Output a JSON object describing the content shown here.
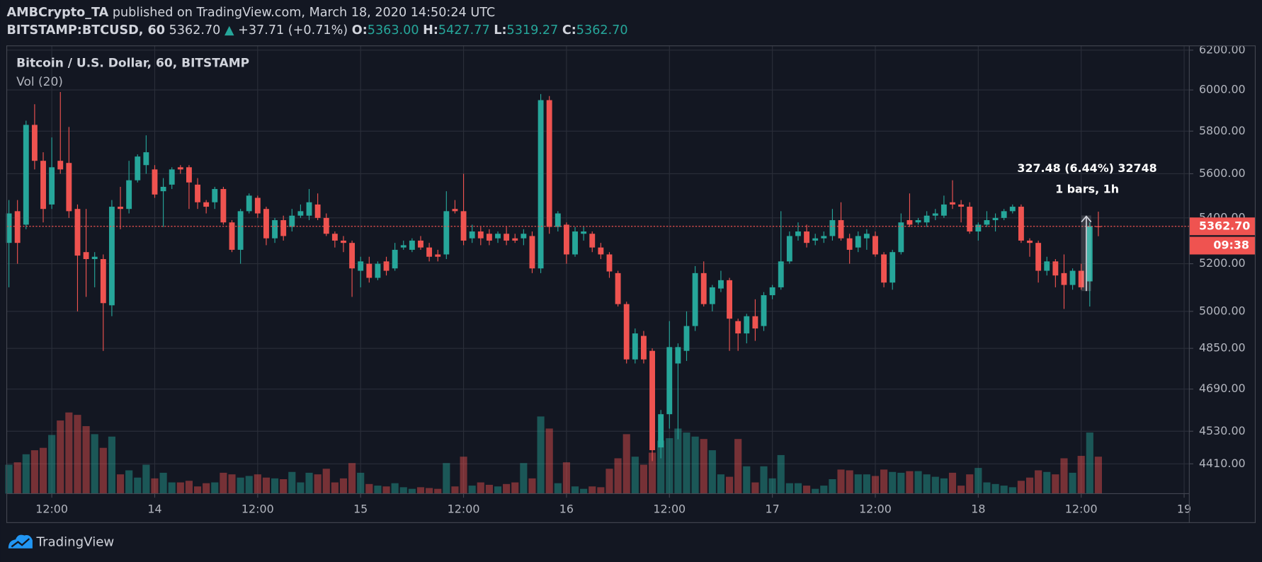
{
  "header": {
    "author": "AMBCrypto_TA",
    "published": "published on TradingView.com, March 18, 2020 14:50:24 UTC",
    "symbol": "BITSTAMP:BTCUSD, 60",
    "last": "5362.70",
    "change": "+37.71 (+0.71%)",
    "o_label": "O:",
    "o": "5363.00",
    "h_label": "H:",
    "h": "5427.77",
    "l_label": "L:",
    "l": "5319.27",
    "c_label": "C:",
    "c": "5362.70"
  },
  "chart_data": {
    "type": "candlestick",
    "title": "Bitcoin / U.S. Dollar, 60, BITSTAMP",
    "volume_title": "Vol (20)",
    "up_color": "#26a69a",
    "down_color": "#ef5350",
    "log_scale": true,
    "grid": true,
    "open": [
      5290,
      5430,
      5370,
      5830,
      5660,
      5460,
      5660,
      5650,
      5440,
      5250,
      5220,
      5220,
      5025,
      5450,
      5440,
      5570,
      5640,
      5620,
      5520,
      5550,
      5630,
      5630,
      5550,
      5470,
      5470,
      5530,
      5380,
      5260,
      5430,
      5490,
      5440,
      5310,
      5390,
      5360,
      5410,
      5410,
      5460,
      5400,
      5330,
      5300,
      5290,
      5170,
      5200,
      5140,
      5210,
      5180,
      5270,
      5260,
      5300,
      5270,
      5240,
      5240,
      5440,
      5430,
      5310,
      5340,
      5330,
      5310,
      5330,
      5310,
      5310,
      5320,
      5180,
      5950,
      5360,
      5370,
      5240,
      5330,
      5330,
      5270,
      5240,
      5160,
      5030,
      4806,
      4900,
      4840,
      4470,
      4594,
      4790,
      4840,
      4940,
      5160,
      5030,
      5095,
      5130,
      4960,
      4910,
      4980,
      4940,
      5067,
      5100,
      5210,
      5320,
      5340,
      5300,
      5310,
      5320,
      5390,
      5310,
      5270,
      5310,
      5320,
      5240,
      5120,
      5250,
      5390,
      5380,
      5380,
      5410,
      5410,
      5470,
      5460,
      5450,
      5340,
      5370,
      5390,
      5400,
      5430,
      5450,
      5300,
      5290,
      5170,
      5210,
      5160,
      5110,
      5170,
      5125,
      5363
    ],
    "high": [
      5480,
      5480,
      5850,
      5930,
      5700,
      5770,
      5990,
      5820,
      5460,
      5440,
      5250,
      5240,
      5480,
      5540,
      5660,
      5690,
      5780,
      5640,
      5580,
      5630,
      5640,
      5640,
      5580,
      5480,
      5540,
      5540,
      5390,
      5440,
      5510,
      5500,
      5450,
      5400,
      5410,
      5440,
      5460,
      5530,
      5510,
      5420,
      5340,
      5320,
      5300,
      5230,
      5230,
      5210,
      5230,
      5290,
      5300,
      5310,
      5320,
      5290,
      5260,
      5520,
      5480,
      5600,
      5370,
      5360,
      5350,
      5340,
      5360,
      5330,
      5350,
      5340,
      5980,
      5970,
      5430,
      5380,
      5360,
      5360,
      5340,
      5290,
      5250,
      5170,
      5040,
      4930,
      4920,
      4850,
      4610,
      4960,
      4870,
      5000,
      5190,
      5210,
      5110,
      5170,
      5140,
      4970,
      4990,
      5050,
      5080,
      5110,
      5430,
      5340,
      5380,
      5370,
      5330,
      5340,
      5440,
      5470,
      5330,
      5340,
      5350,
      5340,
      5250,
      5260,
      5420,
      5510,
      5400,
      5430,
      5440,
      5500,
      5570,
      5480,
      5470,
      5380,
      5430,
      5420,
      5440,
      5460,
      5460,
      5310,
      5300,
      5230,
      5220,
      5240,
      5180,
      5200,
      5380,
      5427.77
    ],
    "low": [
      5100,
      5200,
      5350,
      5620,
      5380,
      5440,
      5600,
      5400,
      5000,
      5060,
      5100,
      4840,
      4980,
      5350,
      5420,
      5560,
      5600,
      5490,
      5360,
      5530,
      5600,
      5440,
      5440,
      5420,
      5440,
      5370,
      5250,
      5200,
      5420,
      5400,
      5280,
      5290,
      5300,
      5340,
      5400,
      5390,
      5390,
      5320,
      5270,
      5250,
      5060,
      5100,
      5120,
      5130,
      5150,
      5170,
      5260,
      5250,
      5260,
      5210,
      5210,
      5220,
      5420,
      5280,
      5290,
      5280,
      5280,
      5290,
      5280,
      5290,
      5280,
      5160,
      5160,
      5330,
      5340,
      5200,
      5230,
      5300,
      5250,
      5220,
      5140,
      5020,
      4790,
      4790,
      4790,
      4420,
      4430,
      4540,
      4500,
      4800,
      4920,
      5020,
      5000,
      5080,
      4840,
      4840,
      4870,
      4880,
      4920,
      5050,
      5090,
      5200,
      5300,
      5270,
      5280,
      5290,
      5300,
      5300,
      5200,
      5250,
      5260,
      5230,
      5100,
      5090,
      5240,
      5360,
      5370,
      5360,
      5390,
      5400,
      5440,
      5380,
      5330,
      5300,
      5360,
      5340,
      5390,
      5420,
      5290,
      5230,
      5120,
      5150,
      5100,
      5010,
      5090,
      5090,
      5020,
      5319.27
    ],
    "close": [
      5420,
      5290,
      5830,
      5660,
      5440,
      5630,
      5620,
      5430,
      5235,
      5220,
      5230,
      5034,
      5450,
      5440,
      5570,
      5680,
      5700,
      5505,
      5540,
      5620,
      5620,
      5560,
      5470,
      5450,
      5530,
      5380,
      5260,
      5430,
      5500,
      5420,
      5310,
      5390,
      5320,
      5410,
      5430,
      5470,
      5400,
      5330,
      5300,
      5290,
      5180,
      5210,
      5140,
      5200,
      5170,
      5260,
      5280,
      5300,
      5270,
      5230,
      5230,
      5430,
      5430,
      5300,
      5340,
      5310,
      5300,
      5330,
      5300,
      5300,
      5330,
      5180,
      5950,
      5360,
      5420,
      5240,
      5340,
      5340,
      5270,
      5240,
      5167,
      5030,
      4806,
      4910,
      4806,
      4460,
      4594,
      4855,
      4855,
      4940,
      5160,
      5030,
      5100,
      5130,
      4970,
      4910,
      4980,
      4930,
      5067,
      5100,
      5210,
      5320,
      5340,
      5290,
      5310,
      5320,
      5390,
      5310,
      5260,
      5320,
      5330,
      5240,
      5120,
      5250,
      5380,
      5370,
      5390,
      5410,
      5420,
      5460,
      5460,
      5450,
      5340,
      5370,
      5390,
      5400,
      5430,
      5450,
      5300,
      5290,
      5170,
      5210,
      5150,
      5110,
      5170,
      5100,
      5363,
      5362.7
    ],
    "volume": [
      36,
      39,
      49,
      54,
      57,
      73,
      91,
      101,
      98,
      84,
      74,
      57,
      71,
      24,
      29,
      20,
      36,
      19,
      26,
      14,
      14,
      16,
      9,
      13,
      14,
      26,
      24,
      20,
      22,
      24,
      20,
      19,
      18,
      27,
      14,
      26,
      24,
      31,
      14,
      19,
      38,
      26,
      12,
      10,
      9,
      13,
      8,
      6,
      8,
      7,
      6,
      38,
      9,
      46,
      10,
      14,
      11,
      9,
      12,
      14,
      38,
      19,
      96,
      81,
      13,
      39,
      9,
      6,
      9,
      8,
      31,
      44,
      74,
      46,
      36,
      51,
      66,
      69,
      81,
      76,
      71,
      68,
      54,
      24,
      21,
      68,
      34,
      14,
      34,
      19,
      48,
      13,
      13,
      10,
      6,
      10,
      18,
      30,
      29,
      24,
      24,
      22,
      30,
      27,
      26,
      28,
      28,
      24,
      21,
      19,
      26,
      10,
      24,
      32,
      14,
      12,
      10,
      8,
      16,
      20,
      29,
      27,
      24,
      44,
      26,
      47,
      76,
      46
    ],
    "ylim": [
      4303,
      6218
    ],
    "yticks": [
      {
        "value": 4410,
        "label": "4410.00"
      },
      {
        "value": 4530,
        "label": "4530.00"
      },
      {
        "value": 4690,
        "label": "4690.00"
      },
      {
        "value": 4850,
        "label": "4850.00"
      },
      {
        "value": 5000,
        "label": "5000.00"
      },
      {
        "value": 5200,
        "label": "5200.00"
      },
      {
        "value": 5400,
        "label": "5400.00"
      },
      {
        "value": 5600,
        "label": "5600.00"
      },
      {
        "value": 5800,
        "label": "5800.00"
      },
      {
        "value": 6000,
        "label": "6000.00"
      },
      {
        "value": 6200,
        "label": "6200.00"
      }
    ],
    "xlim": [
      -0.25,
      137.6
    ],
    "xticks": [
      {
        "value": 5,
        "label": "12:00"
      },
      {
        "value": 17,
        "label": "14"
      },
      {
        "value": 29,
        "label": "12:00"
      },
      {
        "value": 41,
        "label": "15"
      },
      {
        "value": 53,
        "label": "12:00"
      },
      {
        "value": 65,
        "label": "16"
      },
      {
        "value": 77,
        "label": "12:00"
      },
      {
        "value": 89,
        "label": "17"
      },
      {
        "value": 101,
        "label": "12:00"
      },
      {
        "value": 113,
        "label": "18"
      },
      {
        "value": 125,
        "label": "12:00"
      },
      {
        "value": 137,
        "label": "19"
      }
    ],
    "last_price_label": "5362.70",
    "countdown": "09:38",
    "measure": {
      "label": "327.48 (6.44%) 32748",
      "sub_label": "1 bars, 1h"
    }
  },
  "footer": {
    "brand": "TradingView"
  }
}
